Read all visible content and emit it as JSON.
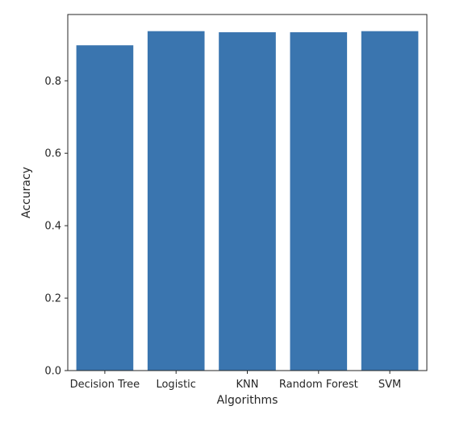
{
  "chart_data": {
    "type": "bar",
    "categories": [
      "Decision Tree",
      "Logistic",
      "KNN",
      "Random Forest",
      "SVM"
    ],
    "values": [
      0.898,
      0.937,
      0.934,
      0.934,
      0.937
    ],
    "xlabel": "Algorithms",
    "ylabel": "Accuracy",
    "ylim": [
      0,
      0.983
    ],
    "yticks": [
      0.0,
      0.2,
      0.4,
      0.6,
      0.8
    ],
    "ytick_labels": [
      "0.0",
      "0.2",
      "0.4",
      "0.6",
      "0.8"
    ],
    "grid": false,
    "bar_color": "#3a75af"
  }
}
